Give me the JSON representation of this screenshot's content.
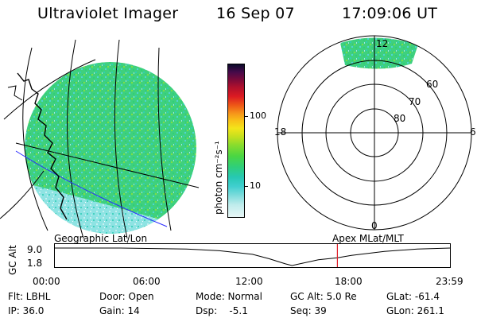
{
  "header": {
    "instrument": "Ultraviolet Imager",
    "date": "16 Sep 07",
    "time": "17:09:06 UT"
  },
  "colorbar": {
    "unit_label": "photon cm⁻²s⁻¹",
    "scale": "log",
    "ticks": [
      "100",
      "10"
    ],
    "colors": [
      "#e8f6f6",
      "#bfecec",
      "#7fdcdc",
      "#40cfcf",
      "#27c8b4",
      "#2fcf78",
      "#4bd642",
      "#88dc2d",
      "#c8e01e",
      "#f3e51a",
      "#f8c218",
      "#f6941a",
      "#ee5a17",
      "#dc1a22",
      "#b0102d",
      "#7a0a3a",
      "#450a4a",
      "#0b0b2a"
    ]
  },
  "left_map": {
    "caption": "Geographic Lat/Lon"
  },
  "polar_plot": {
    "caption": "Apex MLat/MLT",
    "mlt_labels": {
      "top": "12",
      "bottom": "0",
      "left": "18",
      "right": "6"
    },
    "lat_labels": [
      "60",
      "70",
      "80"
    ]
  },
  "chart_data": {
    "type": "line",
    "title": "",
    "ylabel": "GC Alt",
    "yticks": [
      "9.0",
      "1.8"
    ],
    "ylim": [
      1.8,
      9.0
    ],
    "xticks": [
      "00:00",
      "06:00",
      "12:00",
      "18:00",
      "23:59"
    ],
    "x_hours": [
      0,
      4,
      8,
      10,
      12,
      13,
      14,
      14.4,
      15,
      16,
      17.15,
      18,
      20,
      22,
      24
    ],
    "y_alt": [
      9.0,
      9.0,
      8.6,
      7.9,
      6.4,
      4.6,
      2.5,
      1.8,
      2.7,
      4.2,
      5.0,
      6.0,
      7.6,
      8.6,
      9.0
    ],
    "current_time_hours": 17.152,
    "current_marker_color": "#e0202a"
  },
  "info_panel": {
    "row1": [
      "Flt: LBHL",
      "Door: Open",
      "Mode: Normal",
      "GC Alt: 5.0 Re",
      "GLat: -61.4"
    ],
    "row2": [
      "IP: 36.0",
      "Gain: 14",
      "Dsp:    -5.1",
      "Seq: 39",
      "GLon: 261.1"
    ]
  }
}
